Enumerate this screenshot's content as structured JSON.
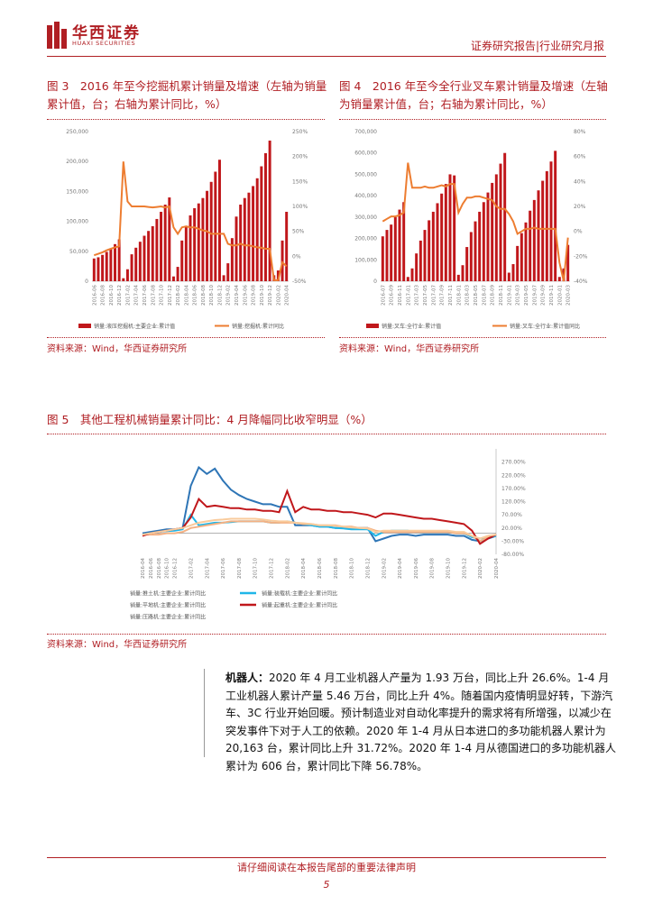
{
  "header": {
    "logo_cn": "华西证券",
    "logo_en": "HUAXI SECURITIES",
    "report_type": "证券研究报告|行业研究月报"
  },
  "colors": {
    "red": "#b01e23",
    "orange": "#ed7d31",
    "blue": "#2e75b6",
    "lightblue": "#1fb6e8",
    "peach": "#f4b183",
    "sand": "#f9cb9c"
  },
  "figures": {
    "fig3": {
      "title": "图 3　2016 年至今挖掘机累计销量及增速（左轴为销量累计值，台；右轴为累计同比，%）",
      "legend_bar": "销量:液压挖掘机:主要企业:累计值",
      "legend_line": "销量:挖掘机:累计同比",
      "source": "资料来源：Wind，华西证券研究所"
    },
    "fig4": {
      "title": "图 4　2016 年至今全行业叉车累计销量及增速（左轴为销量累计值，台；右轴为累计同比，%）",
      "legend_bar": "销量:叉车:全行业:累计值",
      "legend_line": "销量:叉车:全行业:累计值同比",
      "source": "资料来源：Wind，华西证券研究所"
    },
    "fig5": {
      "title": "图 5　其他工程机械销量累计同比：4 月降幅同比收窄明显（%）",
      "source": "资料来源：Wind，华西证券研究所"
    }
  },
  "chart_data": [
    {
      "type": "bar+line",
      "id": "fig3",
      "categories": [
        "2016-06",
        "2016-07",
        "2016-08",
        "2016-09",
        "2016-10",
        "2016-11",
        "2016-12",
        "2017-01",
        "2017-02",
        "2017-03",
        "2017-04",
        "2017-05",
        "2017-06",
        "2017-07",
        "2017-08",
        "2017-09",
        "2017-10",
        "2017-11",
        "2017-12",
        "2018-01",
        "2018-02",
        "2018-03",
        "2018-04",
        "2018-05",
        "2018-06",
        "2018-07",
        "2018-08",
        "2018-09",
        "2018-10",
        "2018-11",
        "2018-12",
        "2019-01",
        "2019-02",
        "2019-03",
        "2019-04",
        "2019-05",
        "2019-06",
        "2019-07",
        "2019-08",
        "2019-09",
        "2019-10",
        "2019-11",
        "2019-12",
        "2020-01",
        "2020-02",
        "2020-03",
        "2020-04"
      ],
      "x_tick_labels": [
        "2016-06",
        "2016-08",
        "2016-10",
        "2016-12",
        "2017-02",
        "2017-04",
        "2017-06",
        "2017-08",
        "2017-10",
        "2017-12",
        "2018-02",
        "2018-04",
        "2018-06",
        "2018-08",
        "2018-10",
        "2018-12",
        "2019-02",
        "2019-04",
        "2019-06",
        "2019-08",
        "2019-10",
        "2019-12",
        "2020-02",
        "2020-04"
      ],
      "series": [
        {
          "name": "销量:液压挖掘机:主要企业:累计值",
          "kind": "bar",
          "axis": "left",
          "values": [
            38000,
            40000,
            44000,
            49000,
            55000,
            62000,
            70000,
            5000,
            20000,
            45000,
            56000,
            66000,
            76000,
            84000,
            92000,
            104000,
            116000,
            128000,
            140000,
            8000,
            24000,
            68000,
            92000,
            110000,
            122000,
            130000,
            139000,
            151000,
            166000,
            183000,
            203000,
            10000,
            30000,
            72000,
            108000,
            128000,
            139000,
            148000,
            159000,
            172000,
            192000,
            214000,
            235000,
            10000,
            18000,
            68000,
            116000
          ]
        },
        {
          "name": "销量:挖掘机:累计同比",
          "kind": "line",
          "axis": "right",
          "values": [
            2,
            5,
            8,
            12,
            15,
            18,
            20,
            190,
            110,
            100,
            100,
            100,
            100,
            99,
            98,
            99,
            100,
            98,
            100,
            58,
            45,
            58,
            60,
            58,
            58,
            55,
            52,
            50,
            45,
            45,
            45,
            45,
            25,
            22,
            22,
            25,
            22,
            22,
            20,
            18,
            17,
            15,
            15,
            -48,
            -48,
            -12,
            -20
          ]
        }
      ],
      "ylim_left": [
        0,
        250000
      ],
      "yticks_left": [
        "0",
        "50,000",
        "100,000",
        "150,000",
        "200,000",
        "250,000"
      ],
      "ylim_right": [
        -50,
        250
      ],
      "yticks_right": [
        "-50%",
        "0%",
        "50%",
        "100%",
        "150%",
        "200%",
        "250%"
      ]
    },
    {
      "type": "bar+line",
      "id": "fig4",
      "categories": [
        "2016-07",
        "2016-08",
        "2016-09",
        "2016-10",
        "2016-11",
        "2016-12",
        "2017-01",
        "2017-02",
        "2017-03",
        "2017-04",
        "2017-05",
        "2017-06",
        "2017-07",
        "2017-08",
        "2017-09",
        "2017-10",
        "2017-11",
        "2017-12",
        "2018-01",
        "2018-02",
        "2018-03",
        "2018-04",
        "2018-05",
        "2018-06",
        "2018-07",
        "2018-08",
        "2018-09",
        "2018-10",
        "2018-11",
        "2018-12",
        "2019-01",
        "2019-02",
        "2019-03",
        "2019-04",
        "2019-05",
        "2019-06",
        "2019-07",
        "2019-08",
        "2019-09",
        "2019-10",
        "2019-11",
        "2019-12",
        "2020-01",
        "2020-02",
        "2020-03"
      ],
      "x_tick_labels": [
        "2016-07",
        "2016-09",
        "2016-11",
        "2017-01",
        "2017-03",
        "2017-05",
        "2017-07",
        "2017-09",
        "2017-11",
        "2018-01",
        "2018-03",
        "2018-05",
        "2018-07",
        "2018-09",
        "2018-11",
        "2019-01",
        "2019-03",
        "2019-05",
        "2019-07",
        "2019-09",
        "2019-11",
        "2020-01",
        "2020-03"
      ],
      "series": [
        {
          "name": "销量:叉车:全行业:累计值",
          "kind": "bar",
          "axis": "left",
          "values": [
            210000,
            240000,
            265000,
            300000,
            335000,
            370000,
            20000,
            60000,
            130000,
            190000,
            240000,
            285000,
            325000,
            365000,
            410000,
            455000,
            500000,
            495000,
            30000,
            75000,
            160000,
            230000,
            280000,
            325000,
            370000,
            415000,
            460000,
            500000,
            550000,
            600000,
            40000,
            80000,
            165000,
            225000,
            275000,
            330000,
            380000,
            425000,
            470000,
            515000,
            560000,
            610000,
            20000,
            60000,
            170000
          ]
        },
        {
          "name": "销量:叉车:全行业:累计值同比",
          "kind": "line",
          "axis": "right",
          "values": [
            8,
            10,
            12,
            12,
            13,
            15,
            55,
            35,
            35,
            35,
            36,
            35,
            35,
            36,
            37,
            36,
            38,
            38,
            15,
            22,
            27,
            27,
            28,
            28,
            27,
            26,
            25,
            20,
            18,
            18,
            14,
            8,
            -2,
            0,
            2,
            2,
            3,
            2,
            2,
            2,
            2,
            2,
            -25,
            -40,
            -5
          ]
        }
      ],
      "ylim_left": [
        0,
        700000
      ],
      "yticks_left": [
        "0",
        "100,000",
        "200,000",
        "300,000",
        "400,000",
        "500,000",
        "600,000",
        "700,000"
      ],
      "ylim_right": [
        -40,
        80
      ],
      "yticks_right": [
        "-40%",
        "-20%",
        "0%",
        "20%",
        "40%",
        "60%",
        "80%"
      ]
    },
    {
      "type": "line",
      "id": "fig5",
      "categories": [
        "2016-04",
        "2016-06",
        "2016-08",
        "2016-10",
        "2016-12",
        "2017-01",
        "2017-02",
        "2017-03",
        "2017-04",
        "2017-05",
        "2017-06",
        "2017-07",
        "2017-08",
        "2017-09",
        "2017-10",
        "2017-11",
        "2017-12",
        "2018-01",
        "2018-02",
        "2018-03",
        "2018-04",
        "2018-05",
        "2018-06",
        "2018-07",
        "2018-08",
        "2018-09",
        "2018-10",
        "2018-11",
        "2018-12",
        "2019-01",
        "2019-02",
        "2019-03",
        "2019-04",
        "2019-05",
        "2019-06",
        "2019-07",
        "2019-08",
        "2019-09",
        "2019-10",
        "2019-11",
        "2019-12",
        "2020-01",
        "2020-02",
        "2020-03",
        "2020-04"
      ],
      "x_tick_labels": [
        "2016-04",
        "2016-06",
        "2016-08",
        "2016-10",
        "2016-12",
        "2017-02",
        "2017-04",
        "2017-06",
        "2017-08",
        "2017-10",
        "2017-12",
        "2018-02",
        "2018-04",
        "2018-06",
        "2018-08",
        "2018-10",
        "2018-12",
        "2019-02",
        "2019-04",
        "2019-06",
        "2019-08",
        "2019-10",
        "2019-12",
        "2020-02",
        "2020-04"
      ],
      "series": [
        {
          "name": "销量:推土机:主要企业:累计同比",
          "color": "#2e75b6",
          "values": [
            0,
            5,
            10,
            15,
            15,
            20,
            180,
            250,
            225,
            245,
            200,
            165,
            145,
            130,
            120,
            110,
            110,
            100,
            100,
            30,
            30,
            30,
            25,
            25,
            20,
            20,
            20,
            20,
            20,
            -30,
            -20,
            -10,
            -5,
            -5,
            -10,
            -5,
            -5,
            -5,
            -5,
            -10,
            -10,
            -25,
            -30,
            -20,
            -10
          ]
        },
        {
          "name": "销量:装载机:主要企业:累计同比",
          "color": "#1fb6e8",
          "values": [
            -5,
            0,
            5,
            8,
            10,
            15,
            70,
            30,
            35,
            40,
            40,
            42,
            45,
            45,
            45,
            45,
            40,
            40,
            45,
            40,
            35,
            30,
            25,
            25,
            20,
            18,
            15,
            15,
            15,
            -10,
            5,
            10,
            10,
            10,
            5,
            5,
            5,
            5,
            5,
            0,
            0,
            -15,
            -20,
            -15,
            -10
          ]
        },
        {
          "name": "销量:平地机:主要企业:累计同比",
          "color": "#f4b183",
          "values": [
            -5,
            -5,
            -5,
            0,
            0,
            5,
            20,
            25,
            30,
            35,
            40,
            45,
            45,
            45,
            45,
            45,
            40,
            40,
            40,
            40,
            35,
            35,
            30,
            30,
            30,
            25,
            25,
            20,
            20,
            10,
            5,
            5,
            5,
            5,
            5,
            5,
            5,
            5,
            5,
            0,
            0,
            -10,
            -30,
            -15,
            -5
          ]
        },
        {
          "name": "销量:起重机:主要企业:累计同比",
          "color": "#c0171b",
          "values": [
            -10,
            0,
            5,
            10,
            15,
            20,
            60,
            130,
            100,
            105,
            100,
            95,
            95,
            90,
            90,
            85,
            85,
            80,
            160,
            80,
            100,
            90,
            90,
            85,
            85,
            80,
            80,
            75,
            70,
            60,
            75,
            75,
            70,
            65,
            60,
            55,
            55,
            50,
            45,
            40,
            35,
            10,
            -40,
            -20,
            -5
          ]
        },
        {
          "name": "销量:压路机:主要企业:累计同比",
          "color": "#f9cb9c",
          "values": [
            -5,
            0,
            5,
            10,
            15,
            20,
            30,
            40,
            45,
            50,
            52,
            55,
            55,
            55,
            55,
            52,
            48,
            45,
            45,
            40,
            38,
            35,
            30,
            30,
            28,
            25,
            22,
            20,
            18,
            5,
            10,
            10,
            10,
            10,
            10,
            10,
            10,
            10,
            10,
            5,
            5,
            -10,
            -20,
            -10,
            -5
          ]
        }
      ],
      "ylim": [
        -80,
        320
      ],
      "yticks": [
        "-80.00%",
        "-30.00%",
        "20.00%",
        "70.00%",
        "120.00%",
        "170.00%",
        "220.00%",
        "270.00%"
      ]
    }
  ],
  "body": {
    "lead": "机器人：",
    "text": "2020 年 4 月工业机器人产量为 1.93 万台，同比上升 26.6%。1-4 月工业机器人累计产量 5.46 万台，同比上升 4%。随着国内疫情明显好转，下游汽车、3C 行业开始回暖。预计制造业对自动化率提升的需求将有所增强，以减少在突发事件下对于人工的依赖。2020 年 1-4 月从日本进口的多功能机器人累计为 20,163 台，累计同比上升 31.72%。2020 年 1-4 月从德国进口的多功能机器人累计为 606 台，累计同比下降 56.78%。"
  },
  "footer": {
    "disclaimer": "请仔细阅读在本报告尾部的重要法律声明",
    "page": "5"
  }
}
